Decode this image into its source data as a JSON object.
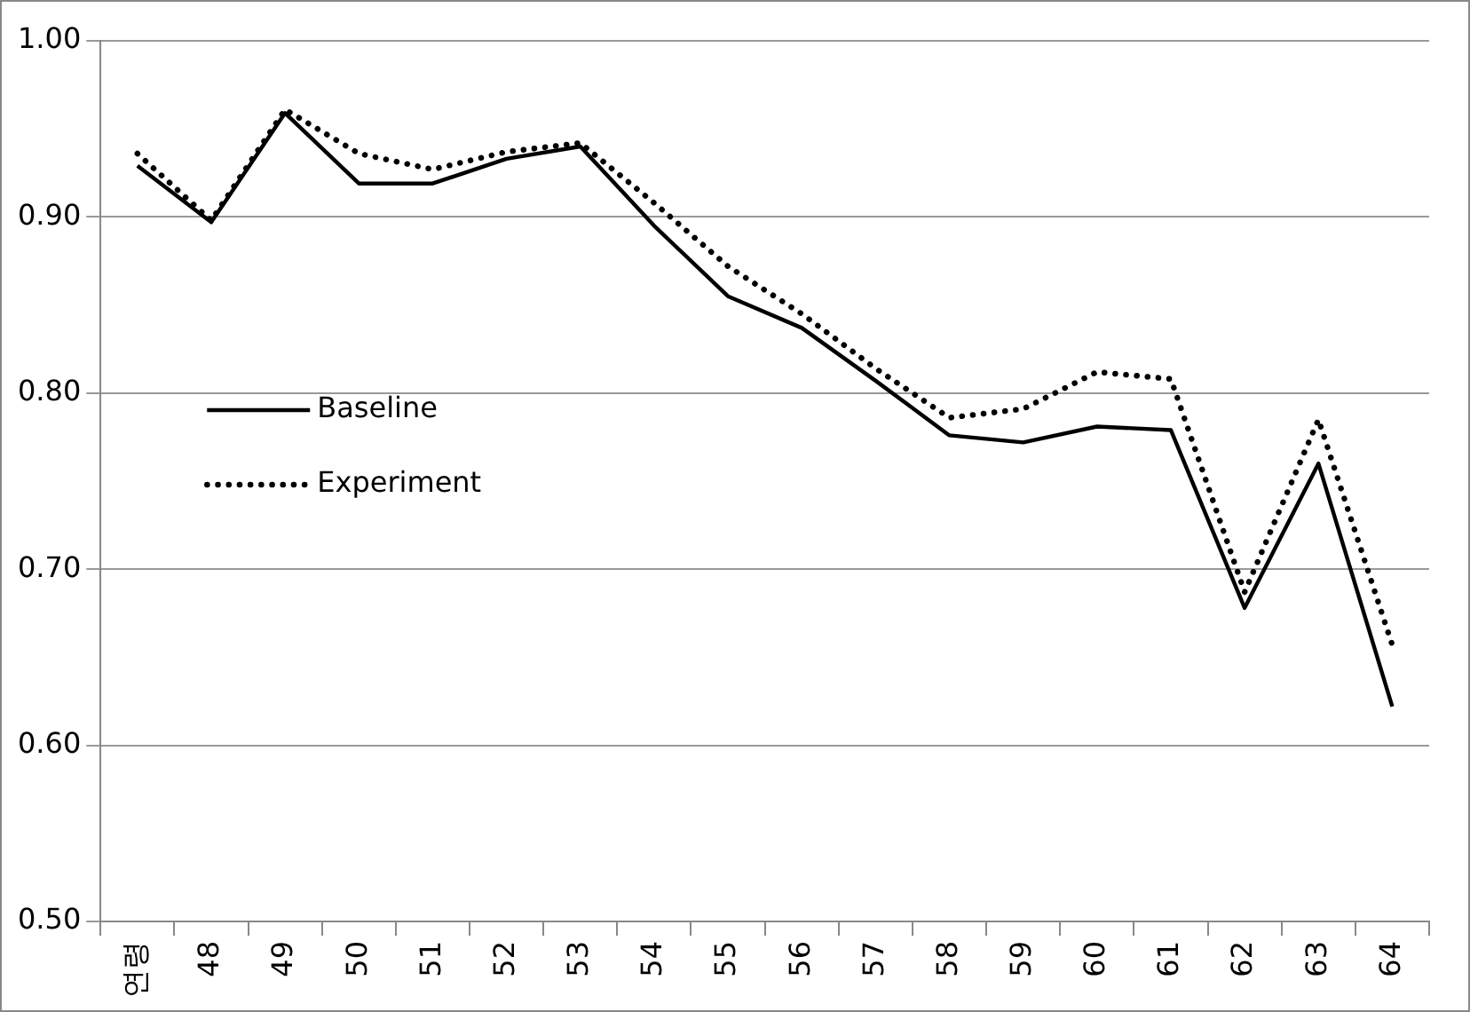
{
  "chart_data": {
    "type": "line",
    "categories": [
      "연령",
      "48",
      "49",
      "50",
      "51",
      "52",
      "53",
      "54",
      "55",
      "56",
      "57",
      "58",
      "59",
      "60",
      "61",
      "62",
      "63",
      "64"
    ],
    "series": [
      {
        "name": "Baseline",
        "color": "#000000",
        "line_style": "solid",
        "values": [
          0.929,
          0.897,
          0.959,
          0.919,
          0.919,
          0.933,
          0.94,
          0.895,
          0.855,
          0.837,
          0.807,
          0.776,
          0.772,
          0.781,
          0.779,
          0.678,
          0.76,
          0.622
        ]
      },
      {
        "name": "Experiment",
        "color": "#000000",
        "line_style": "dotted",
        "values": [
          0.936,
          0.898,
          0.961,
          0.936,
          0.927,
          0.937,
          0.942,
          0.908,
          0.872,
          0.845,
          0.814,
          0.786,
          0.791,
          0.812,
          0.808,
          0.687,
          0.785,
          0.657
        ]
      }
    ],
    "ylim": [
      0.5,
      1.0
    ],
    "yticks": [
      {
        "value": 0.5,
        "label": "0.50"
      },
      {
        "value": 0.6,
        "label": "0.60"
      },
      {
        "value": 0.7,
        "label": "0.70"
      },
      {
        "value": 0.8,
        "label": "0.80"
      },
      {
        "value": 0.9,
        "label": "0.90"
      },
      {
        "value": 1.0,
        "label": "1.00"
      }
    ],
    "grid": "y",
    "legend": "left",
    "marker": "none"
  }
}
